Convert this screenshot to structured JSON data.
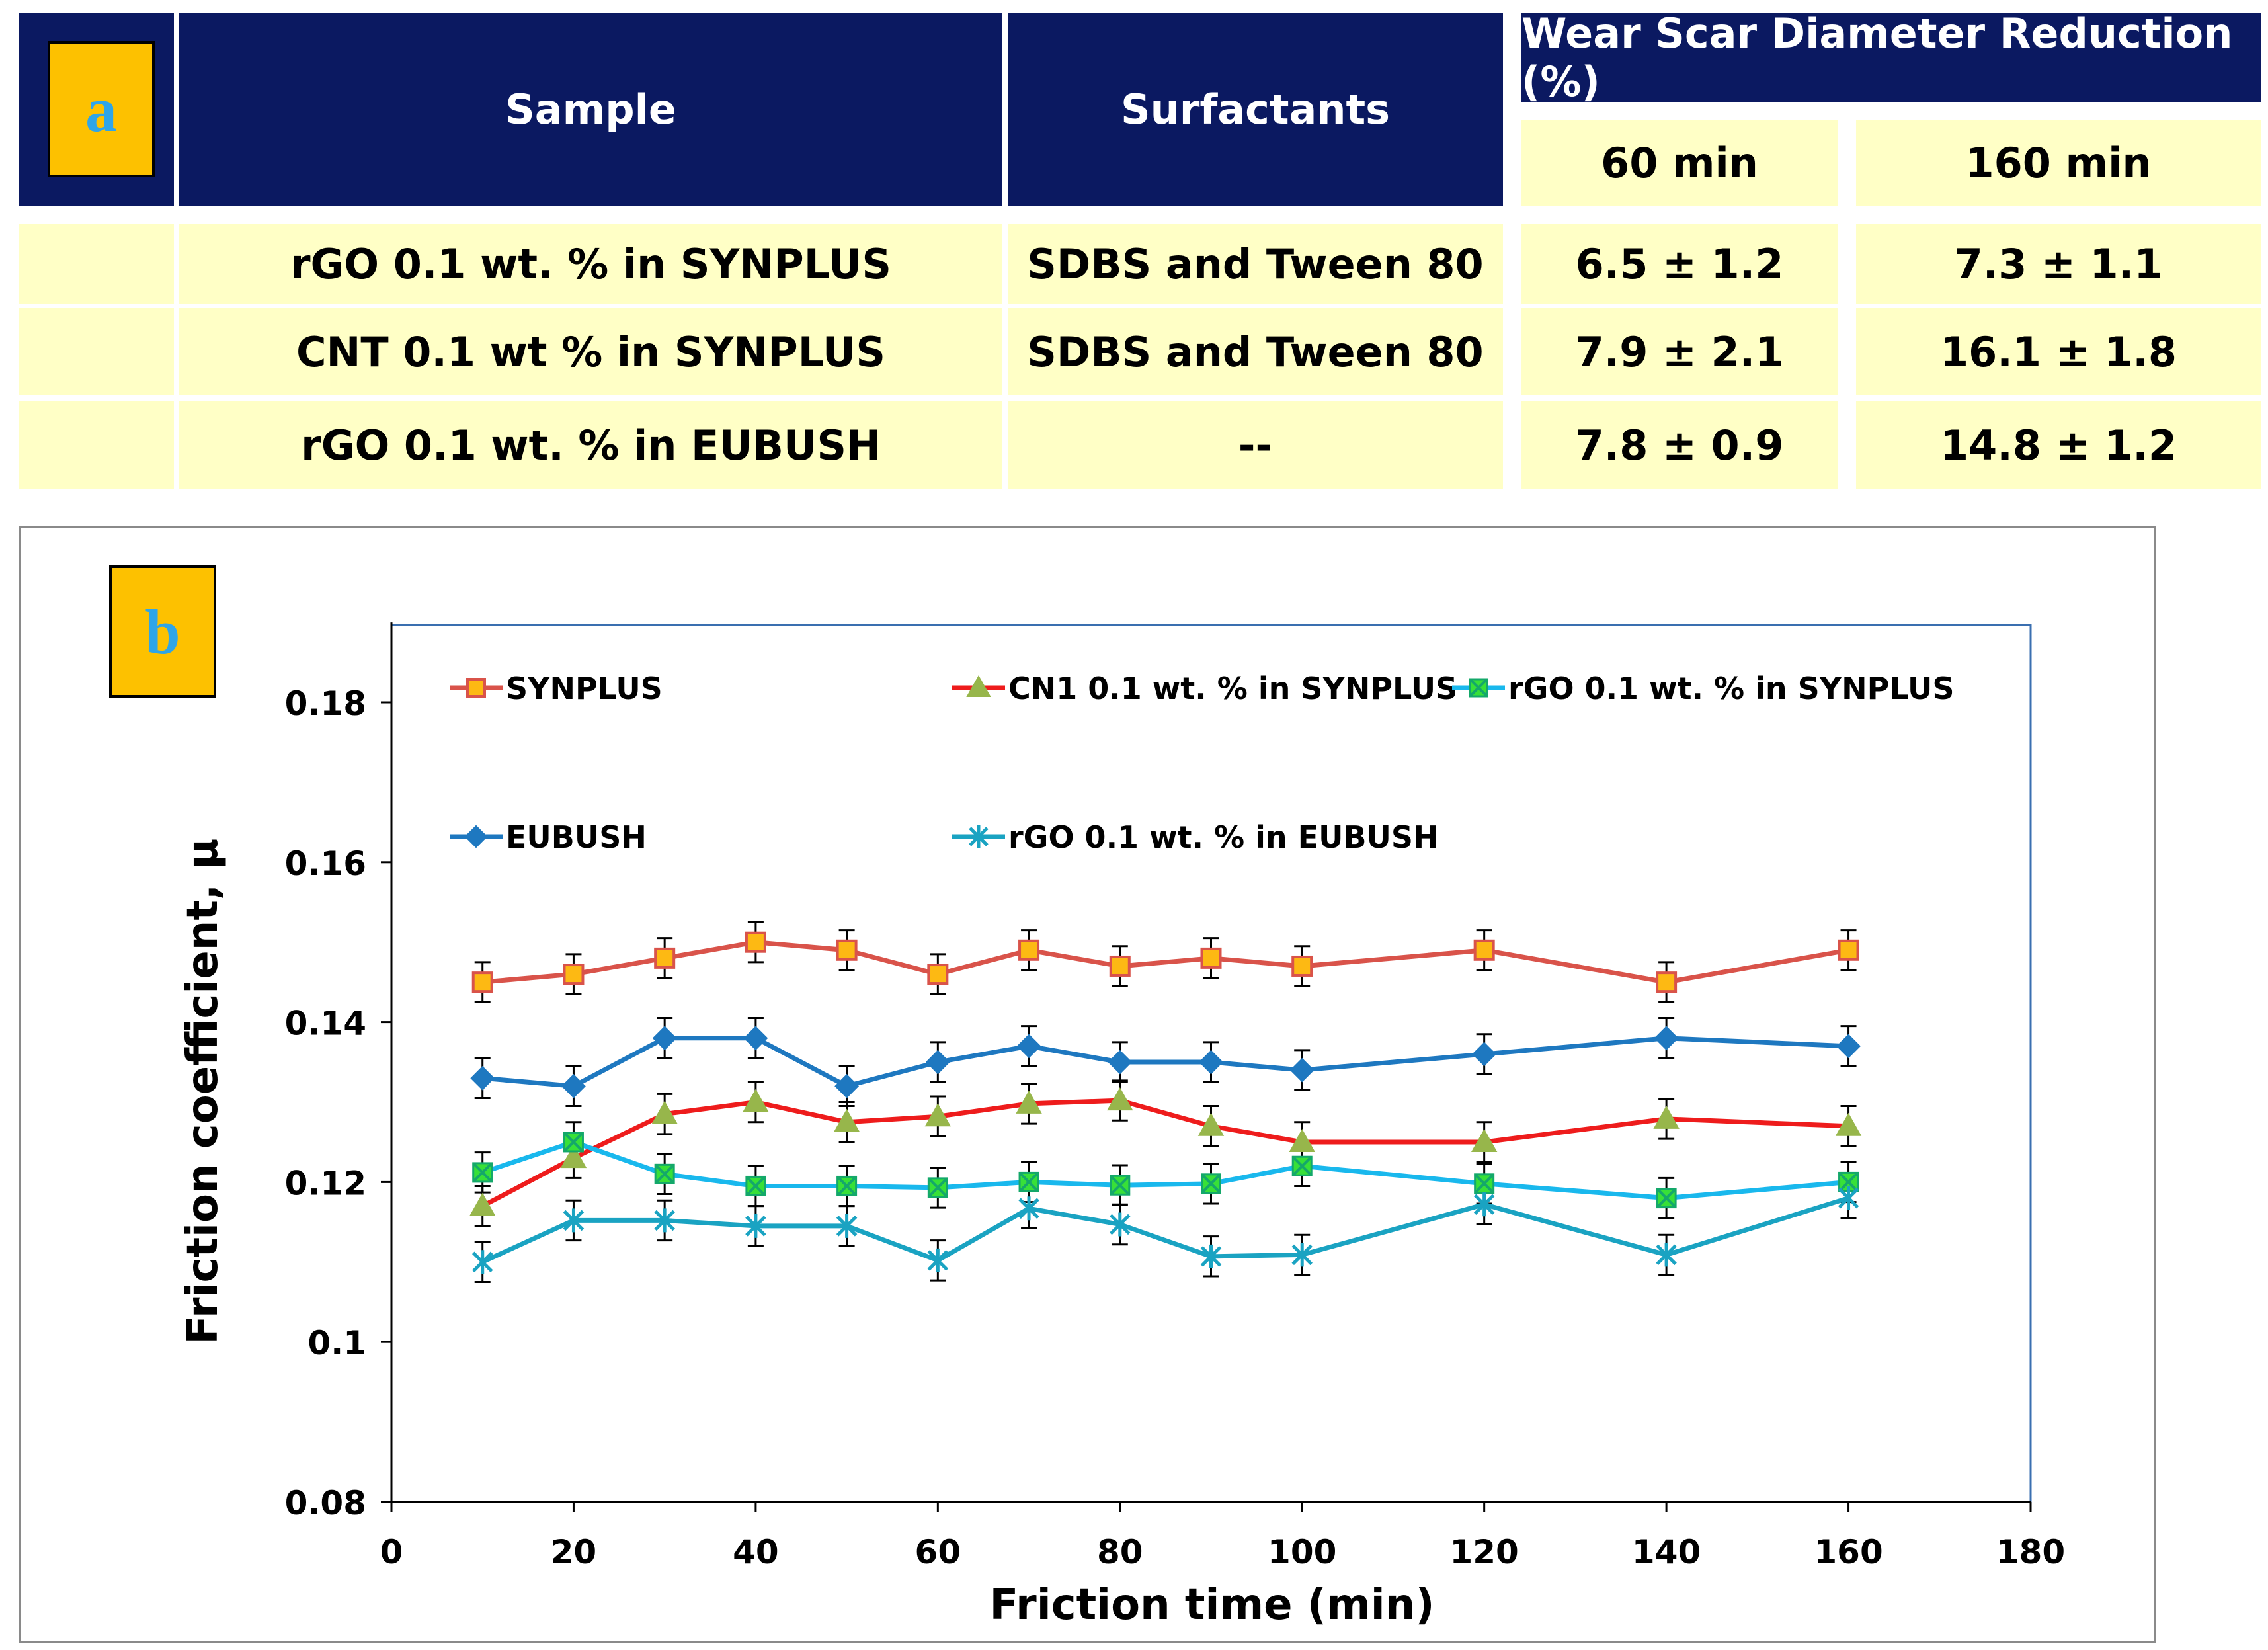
{
  "panel_a": {
    "badge": "a",
    "headers": {
      "sample": "Sample",
      "surfactants": "Surfactants",
      "wsd": "Wear Scar Diameter Reduction (%)",
      "t60": "60 min",
      "t160": "160 min"
    },
    "rows": [
      {
        "sample": "rGO 0.1 wt. % in SYNPLUS",
        "surfactants": "SDBS and Tween 80",
        "v60": "6.5 ± 1.2",
        "v160": "7.3 ± 1.1"
      },
      {
        "sample": "CNT 0.1 wt % in SYNPLUS",
        "surfactants": "SDBS and Tween 80",
        "v60": "7.9 ± 2.1",
        "v160": "16.1 ± 1.8"
      },
      {
        "sample": "rGO 0.1 wt. % in EUBUSH",
        "surfactants": "--",
        "v60": "7.8 ± 0.9",
        "v160": "14.8 ± 1.2"
      }
    ]
  },
  "panel_b": {
    "badge": "b"
  },
  "chart_data": {
    "type": "line",
    "title": "",
    "xlabel": "Friction time (min)",
    "ylabel": "Friction coefficient, μ",
    "xlim": [
      0,
      180
    ],
    "ylim": [
      0.08,
      0.19
    ],
    "xticks": [
      0,
      20,
      40,
      60,
      80,
      100,
      120,
      140,
      160,
      180
    ],
    "xtick_labels": [
      "0",
      "20",
      "40",
      "60",
      "80",
      "100",
      "120",
      "140",
      "160",
      "180"
    ],
    "yticks": [
      0.08,
      0.1,
      0.12,
      0.14,
      0.16,
      0.18
    ],
    "ytick_labels": [
      "0.08",
      "0.1",
      "0.12",
      "0.14",
      "0.16",
      "0.18"
    ],
    "grid": false,
    "error_bar": 0.0025,
    "x": [
      10,
      20,
      30,
      40,
      50,
      60,
      70,
      80,
      90,
      100,
      120,
      140,
      160
    ],
    "series": [
      {
        "name": "SYNPLUS",
        "color": "#d9534a",
        "marker": "square",
        "marker_fill": "#fdb913",
        "marker_stroke": "#d9534a",
        "values": [
          0.145,
          0.146,
          0.148,
          0.15,
          0.149,
          0.146,
          0.149,
          0.147,
          0.148,
          0.147,
          0.149,
          0.145,
          0.149
        ]
      },
      {
        "name": "CN1 0.1 wt. % in SYNPLUS",
        "color": "#ee1c1c",
        "marker": "triangle",
        "marker_fill": "#97b64b",
        "marker_stroke": "#97b64b",
        "values": [
          0.117,
          0.123,
          0.1285,
          0.13,
          0.1275,
          0.1282,
          0.1298,
          0.1302,
          0.127,
          0.125,
          0.125,
          0.1279,
          0.127
        ]
      },
      {
        "name": "rGO 0.1 wt. % in SYNPLUS",
        "color": "#19b8ed",
        "marker": "xsquare",
        "marker_fill": "#38e038",
        "marker_stroke": "#14a86a",
        "values": [
          0.1212,
          0.125,
          0.121,
          0.1195,
          0.1195,
          0.1193,
          0.12,
          0.1196,
          0.1198,
          0.122,
          0.1198,
          0.118,
          0.12
        ]
      },
      {
        "name": "EUBUSH",
        "color": "#1e78c0",
        "marker": "diamond",
        "marker_fill": "#1e78c0",
        "marker_stroke": "#1e78c0",
        "values": [
          0.133,
          0.132,
          0.138,
          0.138,
          0.132,
          0.135,
          0.137,
          0.135,
          0.135,
          0.134,
          0.136,
          0.138,
          0.137
        ]
      },
      {
        "name": "rGO 0.1 wt. % in EUBUSH",
        "color": "#1aa3c2",
        "marker": "star",
        "marker_fill": "none",
        "marker_stroke": "#1aa3c2",
        "values": [
          0.11,
          0.1152,
          0.1152,
          0.1145,
          0.1145,
          0.1102,
          0.1167,
          0.1147,
          0.1107,
          0.1109,
          0.1172,
          0.1109,
          0.118
        ]
      }
    ]
  }
}
